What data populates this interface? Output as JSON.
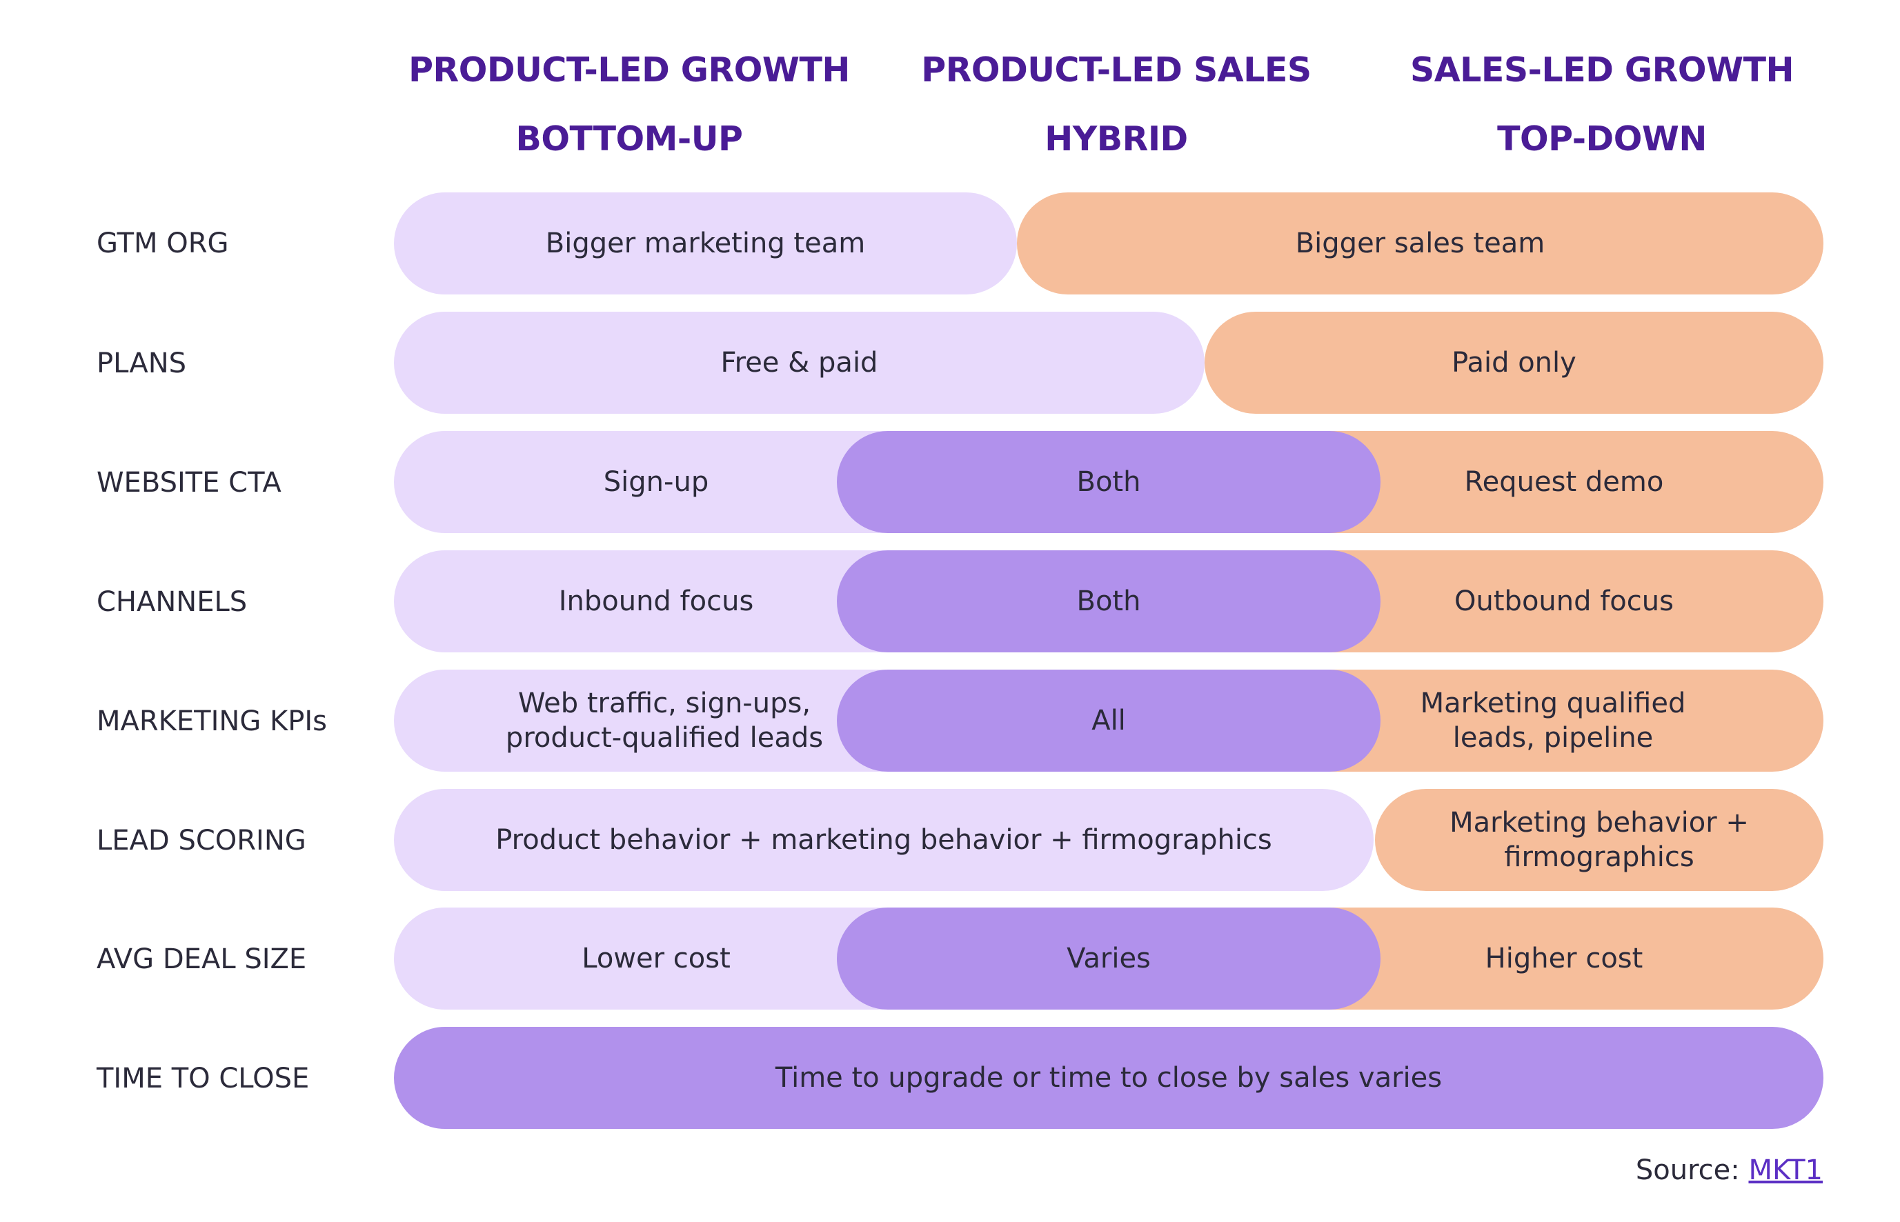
{
  "columns": {
    "plg": {
      "title": "PRODUCT-LED GROWTH",
      "subtitle": "BOTTOM-UP"
    },
    "pls": {
      "title": "PRODUCT-LED SALES",
      "subtitle": "HYBRID"
    },
    "slg": {
      "title": "SALES-LED GROWTH",
      "subtitle": "TOP-DOWN"
    }
  },
  "rows": {
    "gtm_org": {
      "label": "GTM ORG",
      "left": "Bigger marketing team",
      "right": "Bigger sales team"
    },
    "plans": {
      "label": "PLANS",
      "left": "Free & paid",
      "right": "Paid only"
    },
    "website_cta": {
      "label": "WEBSITE CTA",
      "left": "Sign-up",
      "middle": "Both",
      "right": "Request demo"
    },
    "channels": {
      "label": "CHANNELS",
      "left": "Inbound focus",
      "middle": "Both",
      "right": "Outbound focus"
    },
    "marketing_kpis": {
      "label": "MARKETING KPIs",
      "left_line1": "Web traffic, sign-ups,",
      "left_line2": "product-qualified leads",
      "middle": "All",
      "right_line1": "Marketing qualified",
      "right_line2": "leads, pipeline"
    },
    "lead_scoring": {
      "label": "LEAD SCORING",
      "left": "Product behavior + marketing behavior + firmographics",
      "right_line1": "Marketing behavior +",
      "right_line2": "firmographics"
    },
    "avg_deal_size": {
      "label": "AVG DEAL SIZE",
      "left": "Lower cost",
      "middle": "Varies",
      "right": "Higher cost"
    },
    "time_to_close": {
      "label": "TIME TO CLOSE",
      "full": "Time to upgrade or time to close by sales varies"
    }
  },
  "source": {
    "prefix": "Source: ",
    "link": "MKT1"
  },
  "colors": {
    "heading": "#4a1c96",
    "light_purple": "#e8dafc",
    "mid_purple": "#b191ec",
    "orange": "#f6be9b",
    "text": "#2b2a3a",
    "link": "#5b2fc4"
  }
}
